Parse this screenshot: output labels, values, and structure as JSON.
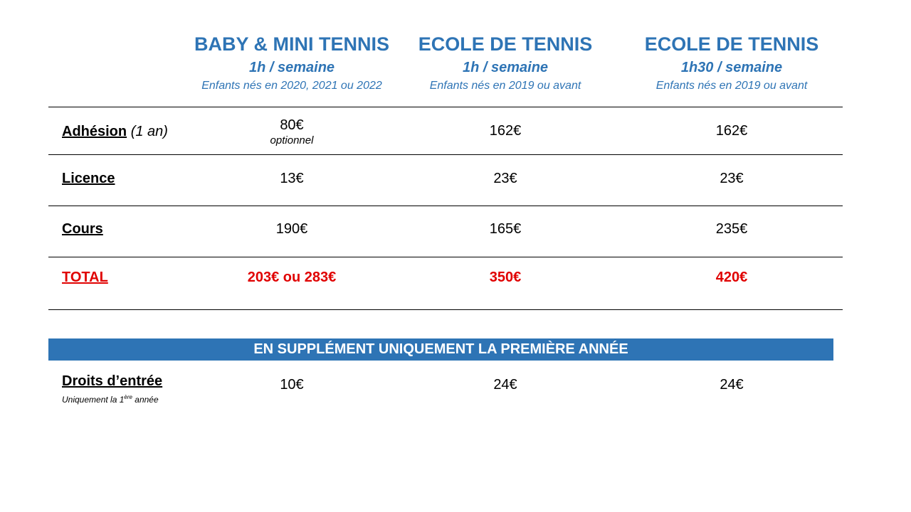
{
  "columns": [
    {
      "title": "BABY & MINI TENNIS",
      "frequency": "1h / semaine",
      "eligibility": "Enfants nés en 2020, 2021 ou 2022"
    },
    {
      "title": "ECOLE DE TENNIS",
      "frequency": "1h / semaine",
      "eligibility": "Enfants nés en 2019 ou avant"
    },
    {
      "title": "ECOLE DE TENNIS",
      "frequency": "1h30 / semaine",
      "eligibility": "Enfants nés en 2019 ou avant"
    }
  ],
  "rows": {
    "adhesion": {
      "label": "Adhésion",
      "qualifier": "(1 an)",
      "values": [
        "80€",
        "162€",
        "162€"
      ],
      "note": "optionnel"
    },
    "licence": {
      "label": "Licence",
      "values": [
        "13€",
        "23€",
        "23€"
      ]
    },
    "cours": {
      "label": "Cours",
      "values": [
        "190€",
        "165€",
        "235€"
      ]
    },
    "total": {
      "label": "TOTAL",
      "values": [
        "203€ ou 283€",
        "350€",
        "420€"
      ]
    }
  },
  "supplement": {
    "banner": "EN SUPPLÉMENT UNIQUEMENT LA PREMIÈRE ANNÉE",
    "label": "Droits d’entrée",
    "note_prefix": "Uniquement la 1",
    "note_sup": "ère",
    "note_suffix": " année",
    "values": [
      "10€",
      "24€",
      "24€"
    ]
  },
  "colors": {
    "accent": "#2e74b5",
    "total": "#e00000",
    "text": "#000000"
  }
}
